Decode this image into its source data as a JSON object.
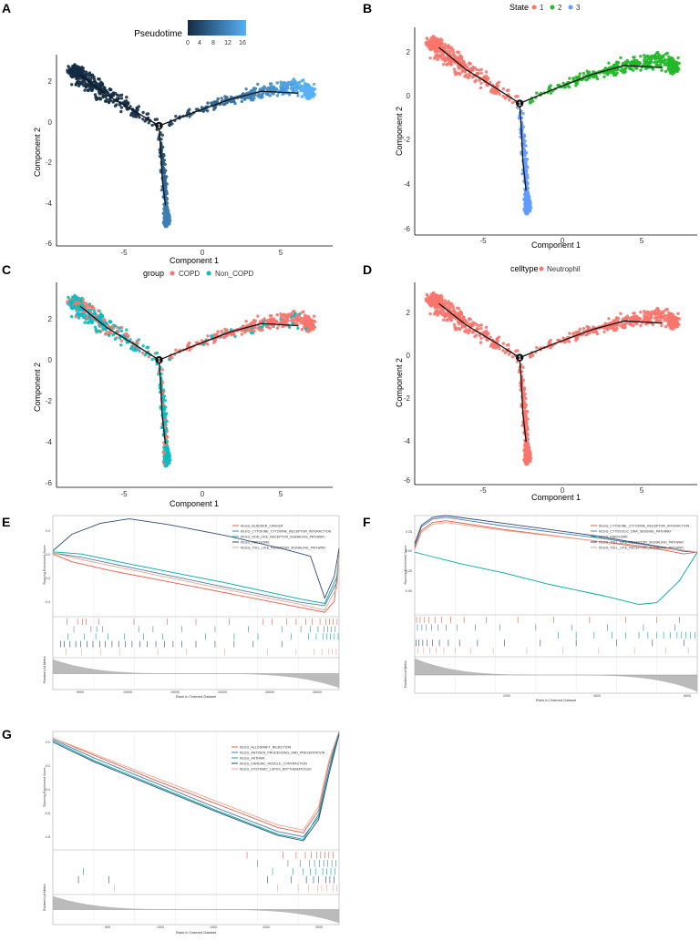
{
  "colors": {
    "state1": "#F8766D",
    "state2": "#22B829",
    "state3": "#619CFF",
    "copd": "#F8766D",
    "noncopd": "#00BFC4",
    "neutrophil": "#F8766D",
    "pt_dark": "#132B43",
    "pt_light": "#56B1F7",
    "gsea": [
      "#E0604A",
      "#4B7FA8",
      "#00A9A5",
      "#2C4A7E",
      "#F2A38E"
    ],
    "gray": "#BBBBBB"
  },
  "chart_data": [
    {
      "panel": "A",
      "type": "scatter",
      "color_by": "pseudotime",
      "legend_title": "Pseudotime",
      "legend_ticks": [
        "0",
        "4",
        "8",
        "12",
        "16"
      ],
      "xlabel": "Component 1",
      "ylabel": "Component 2",
      "xlim": [
        -9,
        8.5
      ],
      "ylim": [
        -6.2,
        3
      ],
      "xticks": [
        "-5",
        "0",
        "5"
      ],
      "yticks": [
        "2",
        "0",
        "-2",
        "-4",
        "-6"
      ],
      "branch_node": "1",
      "trajectory": {
        "trunk": [
          [
            -2.5,
            -0.4
          ],
          [
            -4,
            0.3
          ],
          [
            -5.8,
            1.1
          ],
          [
            -7.5,
            2.1
          ]
        ],
        "right": [
          [
            -2.5,
            -0.4
          ],
          [
            -0.5,
            0.2
          ],
          [
            2,
            0.9
          ],
          [
            4,
            1.3
          ],
          [
            6.3,
            1.2
          ]
        ],
        "down": [
          [
            -2.5,
            -0.4
          ],
          [
            -2.4,
            -1.5
          ],
          [
            -2.3,
            -3
          ],
          [
            -2.1,
            -4.3
          ]
        ]
      }
    },
    {
      "panel": "B",
      "type": "scatter",
      "color_by": "state",
      "legend_title": "State",
      "legend_items": [
        "1",
        "2",
        "3"
      ],
      "xlabel": "Component 1",
      "ylabel": "Component 2",
      "xlim": [
        -9,
        8.5
      ],
      "ylim": [
        -6.2,
        3
      ],
      "xticks": [
        "-5",
        "0",
        "5"
      ],
      "yticks": [
        "2",
        "0",
        "-2",
        "-4",
        "-6"
      ],
      "branch_node": "1"
    },
    {
      "panel": "C",
      "type": "scatter",
      "color_by": "group",
      "legend_title": "group",
      "legend_items": [
        "COPD",
        "Non_COPD"
      ],
      "xlabel": "Component 1",
      "ylabel": "Component 2",
      "xlim": [
        -9,
        8.5
      ],
      "ylim": [
        -6.2,
        3
      ],
      "xticks": [
        "-5",
        "0",
        "5"
      ],
      "yticks": [
        "2",
        "0",
        "-2",
        "-4",
        "-6"
      ],
      "branch_node": "1"
    },
    {
      "panel": "D",
      "type": "scatter",
      "color_by": "celltype",
      "legend_title": "celltype",
      "legend_items": [
        "Neutrophil"
      ],
      "xlabel": "Component 1",
      "ylabel": "Component 2",
      "xlim": [
        -9,
        8.5
      ],
      "ylim": [
        -6.2,
        3
      ],
      "xticks": [
        "-5",
        "0",
        "5"
      ],
      "yticks": [
        "2",
        "0",
        "-2",
        "-4",
        "-6"
      ],
      "branch_node": "1"
    },
    {
      "panel": "E",
      "type": "line",
      "ylabel_top": "Running Enrichment Score",
      "ylabel_bottom": "Ranked List Metric",
      "xlabel": "Rank in Ordered Dataset",
      "xticks": [
        "5000",
        "10000",
        "15000",
        "20000",
        "25000",
        "30000"
      ],
      "yticks": [
        "0.2",
        "0.0",
        "-0.2",
        "-0.4"
      ],
      "xmax": 30000,
      "ylim": [
        -0.62,
        0.3
      ],
      "series": [
        {
          "name": "KEGG_BLADDER_CANCER",
          "values": [
            [
              0,
              -0.05
            ],
            [
              2000,
              -0.12
            ],
            [
              6000,
              -0.2
            ],
            [
              15000,
              -0.35
            ],
            [
              25000,
              -0.52
            ],
            [
              28500,
              -0.58
            ],
            [
              29500,
              -0.48
            ],
            [
              30000,
              -0.05
            ]
          ]
        },
        {
          "name": "KEGG_CYTOKINE_CYTOKINE_RECEPTOR_INTERACTION",
          "values": [
            [
              0,
              -0.04
            ],
            [
              3000,
              -0.08
            ],
            [
              8000,
              -0.17
            ],
            [
              18000,
              -0.35
            ],
            [
              26000,
              -0.49
            ],
            [
              28500,
              -0.52
            ],
            [
              29800,
              -0.3
            ],
            [
              30000,
              -0.04
            ]
          ]
        },
        {
          "name": "KEGG_NOD_LIKE_RECEPTOR_SIGNALING_PATHWAY",
          "values": [
            [
              0,
              -0.03
            ],
            [
              3000,
              -0.05
            ],
            [
              8000,
              -0.14
            ],
            [
              18000,
              -0.31
            ],
            [
              26000,
              -0.46
            ],
            [
              28500,
              -0.5
            ],
            [
              29800,
              -0.25
            ],
            [
              30000,
              -0.03
            ]
          ]
        },
        {
          "name": "KEGG_RIBOSOME",
          "values": [
            [
              0,
              -0.02
            ],
            [
              2000,
              0.13
            ],
            [
              5000,
              0.23
            ],
            [
              8000,
              0.27
            ],
            [
              12000,
              0.22
            ],
            [
              18000,
              0.12
            ],
            [
              24000,
              0.0
            ],
            [
              27000,
              -0.07
            ],
            [
              28500,
              -0.45
            ],
            [
              29500,
              -0.25
            ],
            [
              30000,
              0.0
            ]
          ]
        },
        {
          "name": "KEGG_TOLL_LIKE_RECEPTOR_SIGNALING_PATHWAY",
          "values": [
            [
              0,
              -0.04
            ],
            [
              3000,
              -0.1
            ],
            [
              8000,
              -0.19
            ],
            [
              18000,
              -0.37
            ],
            [
              26000,
              -0.51
            ],
            [
              28500,
              -0.56
            ],
            [
              29800,
              -0.35
            ],
            [
              30000,
              -0.04
            ]
          ]
        }
      ],
      "hits": [
        [
          1500,
          2600,
          3100,
          3500,
          4800,
          8500,
          12000,
          15000,
          18500,
          22000,
          23000,
          24500,
          25500,
          26500,
          27200,
          28000,
          28600,
          29000,
          29400,
          29800
        ],
        [
          2200,
          4000,
          4600,
          5200,
          9000,
          10500,
          13500,
          17000,
          20500,
          24000,
          26000,
          27000,
          27800,
          28400,
          28800,
          29200,
          29600
        ],
        [
          1600,
          3300,
          4500,
          5800,
          7500,
          9500,
          11500,
          16000,
          19000,
          21500,
          25000,
          26800,
          27600,
          28300,
          28700,
          29100,
          29500,
          29900
        ],
        [
          800,
          1200,
          1800,
          2400,
          2900,
          3600,
          4200,
          4900,
          5500,
          6200,
          6900,
          7600,
          8300,
          9100,
          9900,
          10800,
          11700,
          12600,
          13500,
          15000,
          17000,
          19000,
          21000,
          24000
        ],
        [
          1400,
          3000,
          5000,
          7000,
          11000,
          14000,
          18000,
          22500,
          25500,
          27400,
          28200,
          28900,
          29300,
          29700
        ]
      ]
    },
    {
      "panel": "F",
      "type": "line",
      "ylabel_top": "Running Enrichment Score",
      "ylabel_bottom": "Ranked List Metric",
      "xlabel": "Rank in Ordered Dataset",
      "xticks": [
        "2000",
        "4000",
        "6000"
      ],
      "yticks": [
        "0.25",
        "0.00",
        "-0.25",
        "-0.50"
      ],
      "xmax": 6300,
      "ylim": [
        -0.72,
        0.42
      ],
      "series": [
        {
          "name": "KEGG_CYTOKINE_CYTOKINE_RECEPTOR_INTERACTION",
          "values": [
            [
              0,
              0.05
            ],
            [
              150,
              0.25
            ],
            [
              400,
              0.34
            ],
            [
              700,
              0.36
            ],
            [
              2000,
              0.26
            ],
            [
              4000,
              0.13
            ],
            [
              5500,
              0.03
            ],
            [
              6000,
              -0.02
            ],
            [
              6300,
              0.0
            ]
          ]
        },
        {
          "name": "KEGG_CYTOSOLIC_DNA_SENSING_PATHWAY",
          "values": [
            [
              0,
              0.07
            ],
            [
              150,
              0.29
            ],
            [
              400,
              0.38
            ],
            [
              700,
              0.4
            ],
            [
              2000,
              0.3
            ],
            [
              4000,
              0.17
            ],
            [
              5500,
              0.06
            ],
            [
              6000,
              0.02
            ],
            [
              6300,
              0.0
            ]
          ]
        },
        {
          "name": "KEGG_RIBOSOME",
          "values": [
            [
              0,
              0.0
            ],
            [
              300,
              -0.04
            ],
            [
              1000,
              -0.13
            ],
            [
              2000,
              -0.24
            ],
            [
              3000,
              -0.37
            ],
            [
              4200,
              -0.5
            ],
            [
              5000,
              -0.6
            ],
            [
              5400,
              -0.58
            ],
            [
              5900,
              -0.33
            ],
            [
              6300,
              0.0
            ]
          ]
        },
        {
          "name": "KEGG_TOLL_LIKE_RECEPTOR_SIGNALING_PATHWAY",
          "values": [
            [
              0,
              0.1
            ],
            [
              150,
              0.31
            ],
            [
              400,
              0.4
            ],
            [
              700,
              0.42
            ],
            [
              2000,
              0.33
            ],
            [
              4000,
              0.19
            ],
            [
              5500,
              0.06
            ],
            [
              6000,
              0.01
            ],
            [
              6300,
              0.0
            ]
          ]
        },
        {
          "name": "KEGG_TOLL_LIKE_RECEPTOR_SIGNALING_PATHWAY",
          "values": [
            [
              0,
              0.03
            ],
            [
              150,
              0.23
            ],
            [
              400,
              0.32
            ],
            [
              700,
              0.34
            ],
            [
              2000,
              0.25
            ],
            [
              4000,
              0.13
            ],
            [
              5500,
              0.05
            ],
            [
              6000,
              0.02
            ],
            [
              6300,
              0.0
            ]
          ]
        }
      ],
      "hits": [
        [
          40,
          120,
          220,
          320,
          450,
          600,
          800,
          1100,
          1600,
          2300,
          3100,
          3900,
          4700,
          5400,
          5900
        ],
        [
          60,
          160,
          260,
          380,
          520,
          700,
          950,
          1350,
          1900,
          2700,
          3500,
          4300,
          5100,
          5800
        ],
        [
          3200,
          3600,
          4000,
          4400,
          4700,
          5000,
          5200,
          5400,
          5550,
          5700,
          5850,
          5950,
          6050,
          6150,
          6250
        ],
        [
          30,
          90,
          180,
          280,
          400,
          550,
          750,
          1000,
          1400,
          2000,
          2800,
          3600,
          4500,
          5300,
          6000
        ],
        [
          70,
          200,
          340,
          480,
          650,
          900,
          1250,
          1750,
          2500,
          3300,
          4100,
          4900,
          5600,
          6100
        ]
      ]
    },
    {
      "panel": "G",
      "type": "line",
      "ylabel_top": "Running Enrichment Score",
      "ylabel_bottom": "Ranked List Metric",
      "xlabel": "Rank in Ordered Dataset",
      "xticks": [
        "500",
        "1000",
        "1500",
        "2000",
        "2500"
      ],
      "yticks": [
        "0.0",
        "-0.2",
        "-0.4",
        "-0.6",
        "-0.8"
      ],
      "xmax": 2800,
      "ylim": [
        -0.85,
        0.05
      ],
      "series": [
        {
          "name": "KEGG_ALLOGRAFT_REJECTION",
          "values": [
            [
              0,
              0.0
            ],
            [
              400,
              -0.13
            ],
            [
              1000,
              -0.32
            ],
            [
              1600,
              -0.5
            ],
            [
              2200,
              -0.68
            ],
            [
              2450,
              -0.72
            ],
            [
              2600,
              -0.55
            ],
            [
              2700,
              -0.2
            ],
            [
              2800,
              0.05
            ]
          ]
        },
        {
          "name": "KEGG_ANTIGEN_PROCESSING_AND_PRESENTATION",
          "values": [
            [
              0,
              -0.01
            ],
            [
              400,
              -0.15
            ],
            [
              1000,
              -0.34
            ],
            [
              1600,
              -0.53
            ],
            [
              2200,
              -0.71
            ],
            [
              2450,
              -0.75
            ],
            [
              2600,
              -0.6
            ],
            [
              2700,
              -0.25
            ],
            [
              2800,
              0.04
            ]
          ]
        },
        {
          "name": "KEGG_ASTHMA",
          "values": [
            [
              0,
              -0.02
            ],
            [
              400,
              -0.17
            ],
            [
              1000,
              -0.36
            ],
            [
              1600,
              -0.55
            ],
            [
              2200,
              -0.73
            ],
            [
              2450,
              -0.77
            ],
            [
              2600,
              -0.58
            ],
            [
              2720,
              -0.18
            ],
            [
              2800,
              0.05
            ]
          ]
        },
        {
          "name": "KEGG_CARDIAC_MUSCLE_CONTRACTION",
          "values": [
            [
              0,
              -0.03
            ],
            [
              400,
              -0.18
            ],
            [
              1000,
              -0.37
            ],
            [
              1600,
              -0.56
            ],
            [
              2200,
              -0.74
            ],
            [
              2450,
              -0.78
            ],
            [
              2600,
              -0.62
            ],
            [
              2700,
              -0.28
            ],
            [
              2800,
              0.03
            ]
          ]
        },
        {
          "name": "KEGG_SYSTEMIC_LUPUS_ERYTHEMATOSUS",
          "values": [
            [
              0,
              0.0
            ],
            [
              400,
              -0.12
            ],
            [
              1000,
              -0.3
            ],
            [
              1600,
              -0.48
            ],
            [
              2200,
              -0.66
            ],
            [
              2450,
              -0.7
            ],
            [
              2600,
              -0.52
            ],
            [
              2700,
              -0.17
            ],
            [
              2800,
              0.05
            ]
          ]
        }
      ],
      "hits": [
        [
          1900,
          2250,
          2380,
          2470,
          2530,
          2580,
          2620,
          2660,
          2700,
          2740
        ],
        [
          2000,
          2300,
          2420,
          2510,
          2560,
          2610,
          2650,
          2690,
          2730,
          2770
        ],
        [
          300,
          2150,
          2350,
          2450,
          2520,
          2570,
          2640,
          2680,
          2720,
          2760
        ],
        [
          250,
          550,
          2100,
          2330,
          2480,
          2550,
          2600,
          2670,
          2710,
          2750
        ],
        [
          600,
          2200,
          2400,
          2500,
          2590,
          2630,
          2680,
          2740,
          2780
        ]
      ]
    }
  ]
}
